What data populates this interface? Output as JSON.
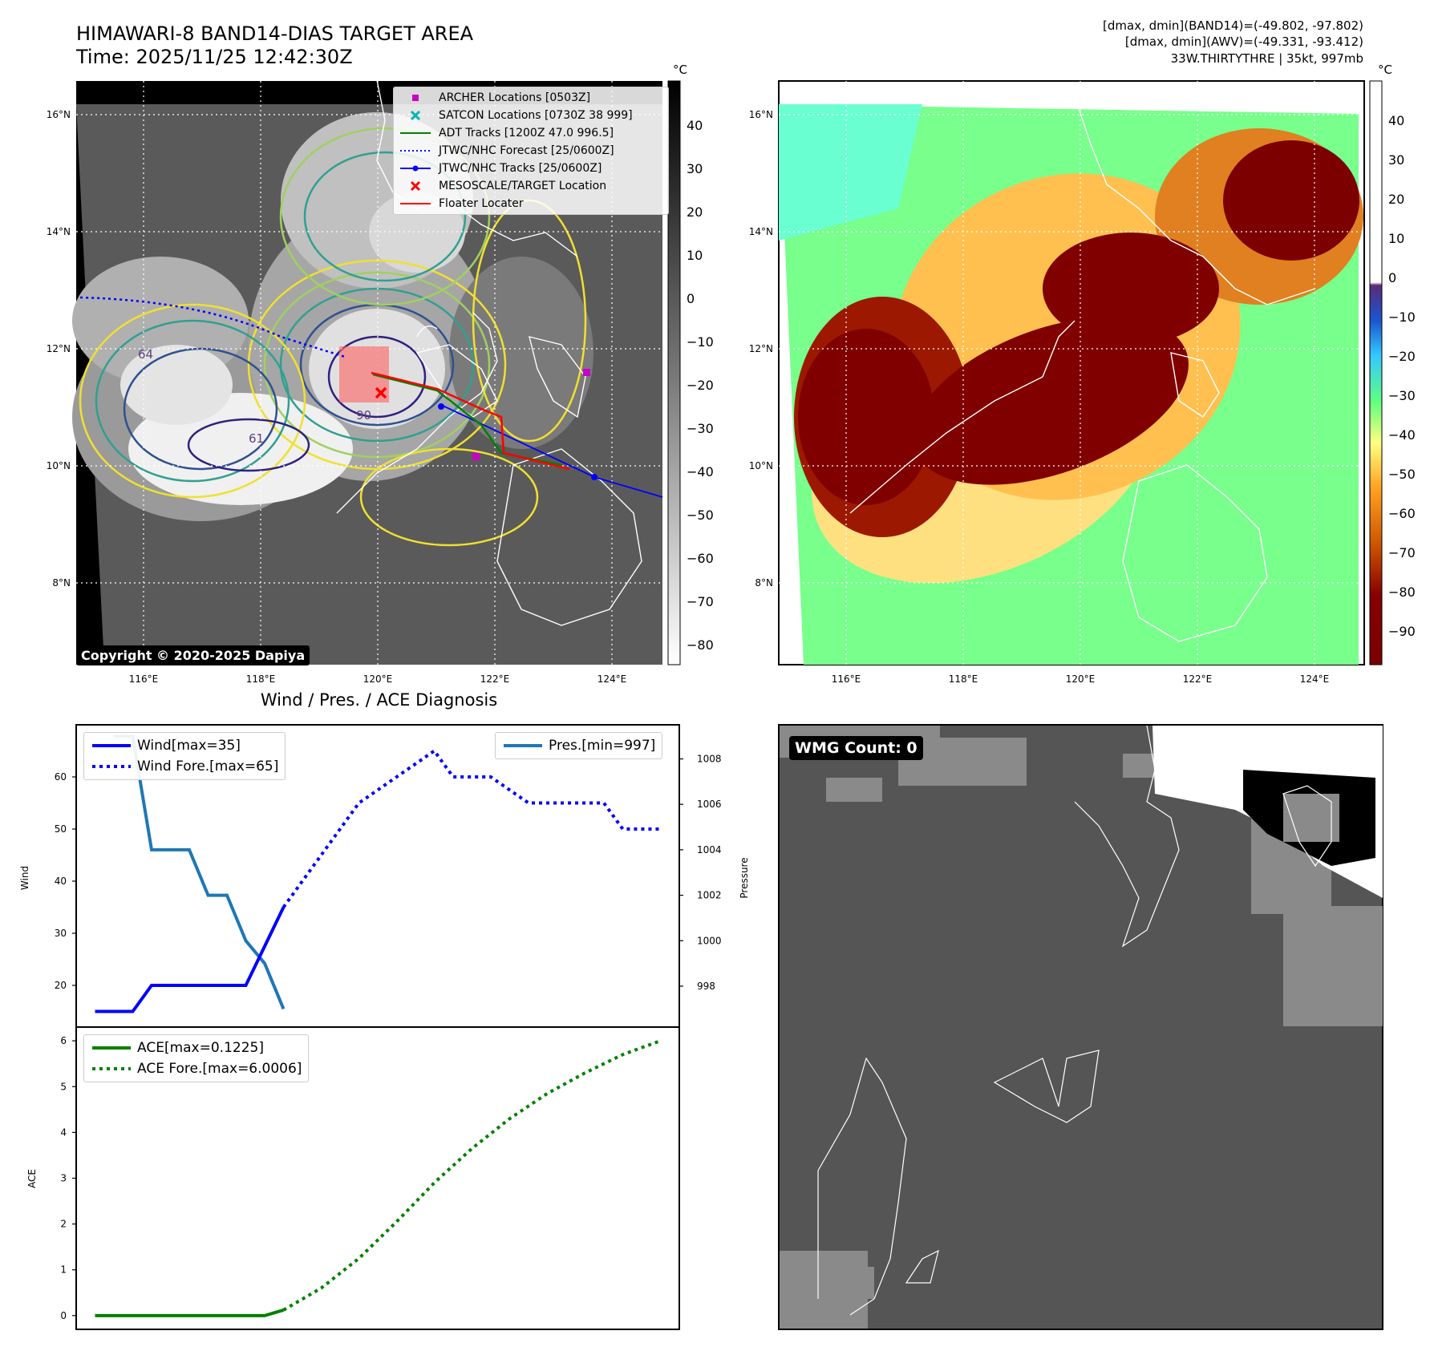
{
  "header": {
    "title": "HIMAWARI-8 BAND14-DIAS TARGET AREA",
    "time": "Time: 2025/11/25 12:42:30Z",
    "stat1": "[dmax, dmin](BAND14)=(-49.802, -97.802)",
    "stat2": "[dmax, dmin](AWV)=(-49.331, -93.412)",
    "stat3": "33W.THIRTYTHRE | 35kt, 997mb"
  },
  "copyright": "Copyright © 2020-2025 Dapiya",
  "wmg_label": "WMG Count: 0",
  "diag_title": "Wind / Pres. / ACE Diagnosis",
  "map": {
    "lon_ticks": [
      "116°E",
      "118°E",
      "120°E",
      "122°E",
      "124°E"
    ],
    "lat_ticks": [
      "16°N",
      "14°N",
      "12°N",
      "10°N",
      "8°N"
    ],
    "legend": [
      {
        "label": "ARCHER Locations [0503Z]",
        "marker": "square",
        "color": "#c800c8"
      },
      {
        "label": "SATCON Locations [0730Z 38 999]",
        "marker": "x",
        "color": "#00b4b4"
      },
      {
        "label": "ADT Tracks [1200Z 47.0 996.5]",
        "marker": "line",
        "color": "#008000"
      },
      {
        "label": "JTWC/NHC Forecast [25/0600Z]",
        "marker": "dotted",
        "color": "#0000ff"
      },
      {
        "label": "JTWC/NHC Tracks [25/0600Z]",
        "marker": "line-dot",
        "color": "#0000ff"
      },
      {
        "label": "MESOSCALE/TARGET Location",
        "marker": "x",
        "color": "#ff0000"
      },
      {
        "label": "Floater Locater",
        "marker": "line",
        "color": "#ff0000"
      }
    ],
    "contour_labels": [
      "64",
      "61",
      "90"
    ],
    "ir_colorbar": {
      "unit": "°C",
      "ticks": [
        "40",
        "30",
        "20",
        "10",
        "0",
        "−10",
        "−20",
        "−30",
        "−40",
        "−50",
        "−60",
        "−70",
        "−80"
      ]
    },
    "dias_colorbar": {
      "unit": "°C",
      "ticks": [
        "40",
        "30",
        "20",
        "10",
        "0",
        "−10",
        "−20",
        "−30",
        "−40",
        "−50",
        "−60",
        "−70",
        "−80",
        "−90"
      ]
    }
  },
  "chart_data": [
    {
      "type": "line",
      "ylabel": "Wind",
      "ylim": [
        12,
        70
      ],
      "yticks": [
        "20",
        "30",
        "40",
        "50",
        "60"
      ],
      "x": [
        0,
        1,
        2,
        3,
        4,
        5,
        6,
        7,
        8,
        9,
        10,
        11,
        12,
        13,
        14,
        15,
        16,
        17,
        18,
        19,
        20,
        21,
        22,
        23,
        24,
        25,
        26,
        27,
        28,
        29,
        30
      ],
      "series": [
        {
          "name": "Wind[max=35]",
          "style": "solid",
          "color": "#0000ff",
          "x": [
            0,
            2,
            3,
            4,
            5,
            6,
            7,
            8,
            9,
            10
          ],
          "values": [
            15,
            15,
            20,
            20,
            20,
            20,
            20,
            20,
            27.5,
            35
          ]
        },
        {
          "name": "Wind Fore.[max=65]",
          "style": "dotted",
          "color": "#0000ff",
          "x": [
            10,
            11,
            12,
            13,
            14,
            15,
            16,
            17,
            18,
            19,
            20,
            21,
            22,
            23,
            24,
            25,
            26,
            27,
            28,
            29,
            30
          ],
          "values": [
            35,
            40,
            45,
            50,
            55,
            57.5,
            60,
            62.5,
            65,
            60,
            60,
            60,
            57.5,
            55,
            55,
            55,
            55,
            55,
            50,
            50,
            50
          ]
        }
      ]
    },
    {
      "type": "line",
      "ylabel": "Pressure",
      "ylim": [
        996.2,
        1009.5
      ],
      "yticks": [
        "998",
        "1000",
        "1002",
        "1004",
        "1006",
        "1008"
      ],
      "series": [
        {
          "name": "Pres.[min=997]",
          "style": "solid",
          "color": "#1f77b4",
          "x": [
            1,
            2,
            3,
            4,
            5,
            6,
            7,
            8,
            9,
            10
          ],
          "values": [
            1009,
            1009,
            1004,
            1004,
            1004,
            1002,
            1002,
            1000,
            999,
            997
          ]
        }
      ]
    },
    {
      "type": "line",
      "ylabel": "ACE",
      "ylim": [
        -0.3,
        6.3
      ],
      "yticks": [
        "0",
        "1",
        "2",
        "3",
        "4",
        "5",
        "6"
      ],
      "series": [
        {
          "name": "ACE[max=0.1225]",
          "style": "solid",
          "color": "#008000",
          "x": [
            0,
            9,
            10
          ],
          "values": [
            0,
            0,
            0.1225
          ]
        },
        {
          "name": "ACE Fore.[max=6.0006]",
          "style": "dotted",
          "color": "#008000",
          "x": [
            10,
            12,
            14,
            16,
            18,
            20,
            22,
            24,
            26,
            28,
            30
          ],
          "values": [
            0.1225,
            0.6,
            1.25,
            2.05,
            2.9,
            3.65,
            4.3,
            4.85,
            5.3,
            5.7,
            6.0006
          ]
        }
      ]
    }
  ]
}
